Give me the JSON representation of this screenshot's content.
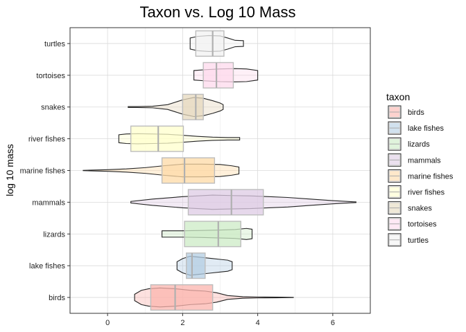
{
  "chart_data": {
    "type": "violin+boxplot",
    "title": "Taxon vs. Log 10 Mass",
    "xlabel": "",
    "ylabel": "log 10 mass",
    "xlim": [
      -1.0,
      7.0
    ],
    "xticks": [
      0,
      2,
      4,
      6
    ],
    "grid": true,
    "orientation": "horizontal",
    "legend": {
      "title": "taxon",
      "position": "right"
    },
    "categories": [
      "birds",
      "lake fishes",
      "lizards",
      "mammals",
      "marine fishes",
      "river fishes",
      "snakes",
      "tortoises",
      "turtles"
    ],
    "series": [
      {
        "name": "birds",
        "color": "#FBB4AE",
        "box": {
          "q1": 1.15,
          "median": 1.8,
          "q3": 2.8
        },
        "violin": [
          [
            0.72,
            0.2
          ],
          [
            0.9,
            0.45
          ],
          [
            1.1,
            0.55
          ],
          [
            1.4,
            0.6
          ],
          [
            1.8,
            0.55
          ],
          [
            2.2,
            0.45
          ],
          [
            2.6,
            0.4
          ],
          [
            2.9,
            0.3
          ],
          [
            3.2,
            0.12
          ],
          [
            3.6,
            0.05
          ],
          [
            4.0,
            0.03
          ],
          [
            4.5,
            0.02
          ],
          [
            4.95,
            0.005
          ]
        ]
      },
      {
        "name": "lake fishes",
        "color": "#B3CDE3",
        "box": {
          "q1": 2.1,
          "median": 2.25,
          "q3": 2.6
        },
        "violin": [
          [
            1.85,
            0.25
          ],
          [
            2.0,
            0.45
          ],
          [
            2.2,
            0.6
          ],
          [
            2.4,
            0.55
          ],
          [
            2.6,
            0.5
          ],
          [
            2.8,
            0.45
          ],
          [
            3.0,
            0.4
          ],
          [
            3.2,
            0.35
          ],
          [
            3.32,
            0.25
          ]
        ]
      },
      {
        "name": "lizards",
        "color": "#CCEBC5",
        "box": {
          "q1": 2.05,
          "median": 2.95,
          "q3": 3.55
        },
        "violin": [
          [
            1.45,
            0.2
          ],
          [
            2.0,
            0.2
          ],
          [
            2.5,
            0.22
          ],
          [
            3.0,
            0.25
          ],
          [
            3.4,
            0.28
          ],
          [
            3.7,
            0.35
          ],
          [
            3.85,
            0.3
          ]
        ]
      },
      {
        "name": "mammals",
        "color": "#DECBE4",
        "box": {
          "q1": 2.15,
          "median": 3.3,
          "q3": 4.15
        },
        "violin": [
          [
            0.62,
            0.05
          ],
          [
            1.2,
            0.2
          ],
          [
            2.0,
            0.35
          ],
          [
            2.8,
            0.45
          ],
          [
            3.3,
            0.42
          ],
          [
            3.8,
            0.4
          ],
          [
            4.3,
            0.35
          ],
          [
            4.8,
            0.3
          ],
          [
            5.4,
            0.2
          ],
          [
            6.0,
            0.1
          ],
          [
            6.62,
            0.02
          ]
        ]
      },
      {
        "name": "marine fishes",
        "color": "#FED9A6",
        "box": {
          "q1": 1.45,
          "median": 2.05,
          "q3": 2.85
        },
        "violin": [
          [
            -0.65,
            0.01
          ],
          [
            0.0,
            0.05
          ],
          [
            0.5,
            0.1
          ],
          [
            1.0,
            0.18
          ],
          [
            1.5,
            0.3
          ],
          [
            2.0,
            0.4
          ],
          [
            2.5,
            0.4
          ],
          [
            3.0,
            0.38
          ],
          [
            3.3,
            0.3
          ],
          [
            3.5,
            0.22
          ]
        ]
      },
      {
        "name": "river fishes",
        "color": "#FFFFCC",
        "box": {
          "q1": 0.62,
          "median": 1.35,
          "q3": 2.02
        },
        "violin": [
          [
            0.3,
            0.25
          ],
          [
            0.5,
            0.3
          ],
          [
            0.8,
            0.32
          ],
          [
            1.2,
            0.3
          ],
          [
            1.6,
            0.28
          ],
          [
            2.0,
            0.22
          ],
          [
            2.4,
            0.15
          ],
          [
            2.8,
            0.1
          ],
          [
            3.2,
            0.08
          ],
          [
            3.52,
            0.08
          ]
        ]
      },
      {
        "name": "snakes",
        "color": "#E5D8BD",
        "box": {
          "q1": 2.0,
          "median": 2.35,
          "q3": 2.55
        },
        "violin": [
          [
            0.55,
            0.03
          ],
          [
            0.8,
            0.03
          ],
          [
            1.2,
            0.05
          ],
          [
            1.6,
            0.15
          ],
          [
            2.0,
            0.45
          ],
          [
            2.3,
            0.6
          ],
          [
            2.55,
            0.55
          ],
          [
            2.8,
            0.4
          ],
          [
            3.0,
            0.25
          ],
          [
            3.08,
            0.15
          ]
        ]
      },
      {
        "name": "tortoises",
        "color": "#FDDAEC",
        "box": {
          "q1": 2.55,
          "median": 2.9,
          "q3": 3.35
        },
        "violin": [
          [
            2.3,
            0.3
          ],
          [
            2.6,
            0.35
          ],
          [
            3.0,
            0.4
          ],
          [
            3.4,
            0.42
          ],
          [
            3.7,
            0.4
          ],
          [
            4.0,
            0.3
          ]
        ]
      },
      {
        "name": "turtles",
        "color": "#F2F2F2",
        "box": {
          "q1": 2.35,
          "median": 2.8,
          "q3": 3.1
        },
        "violin": [
          [
            2.2,
            0.35
          ],
          [
            2.4,
            0.45
          ],
          [
            2.7,
            0.5
          ],
          [
            3.0,
            0.48
          ],
          [
            3.2,
            0.35
          ],
          [
            3.4,
            0.2
          ],
          [
            3.62,
            0.18
          ]
        ]
      }
    ]
  }
}
